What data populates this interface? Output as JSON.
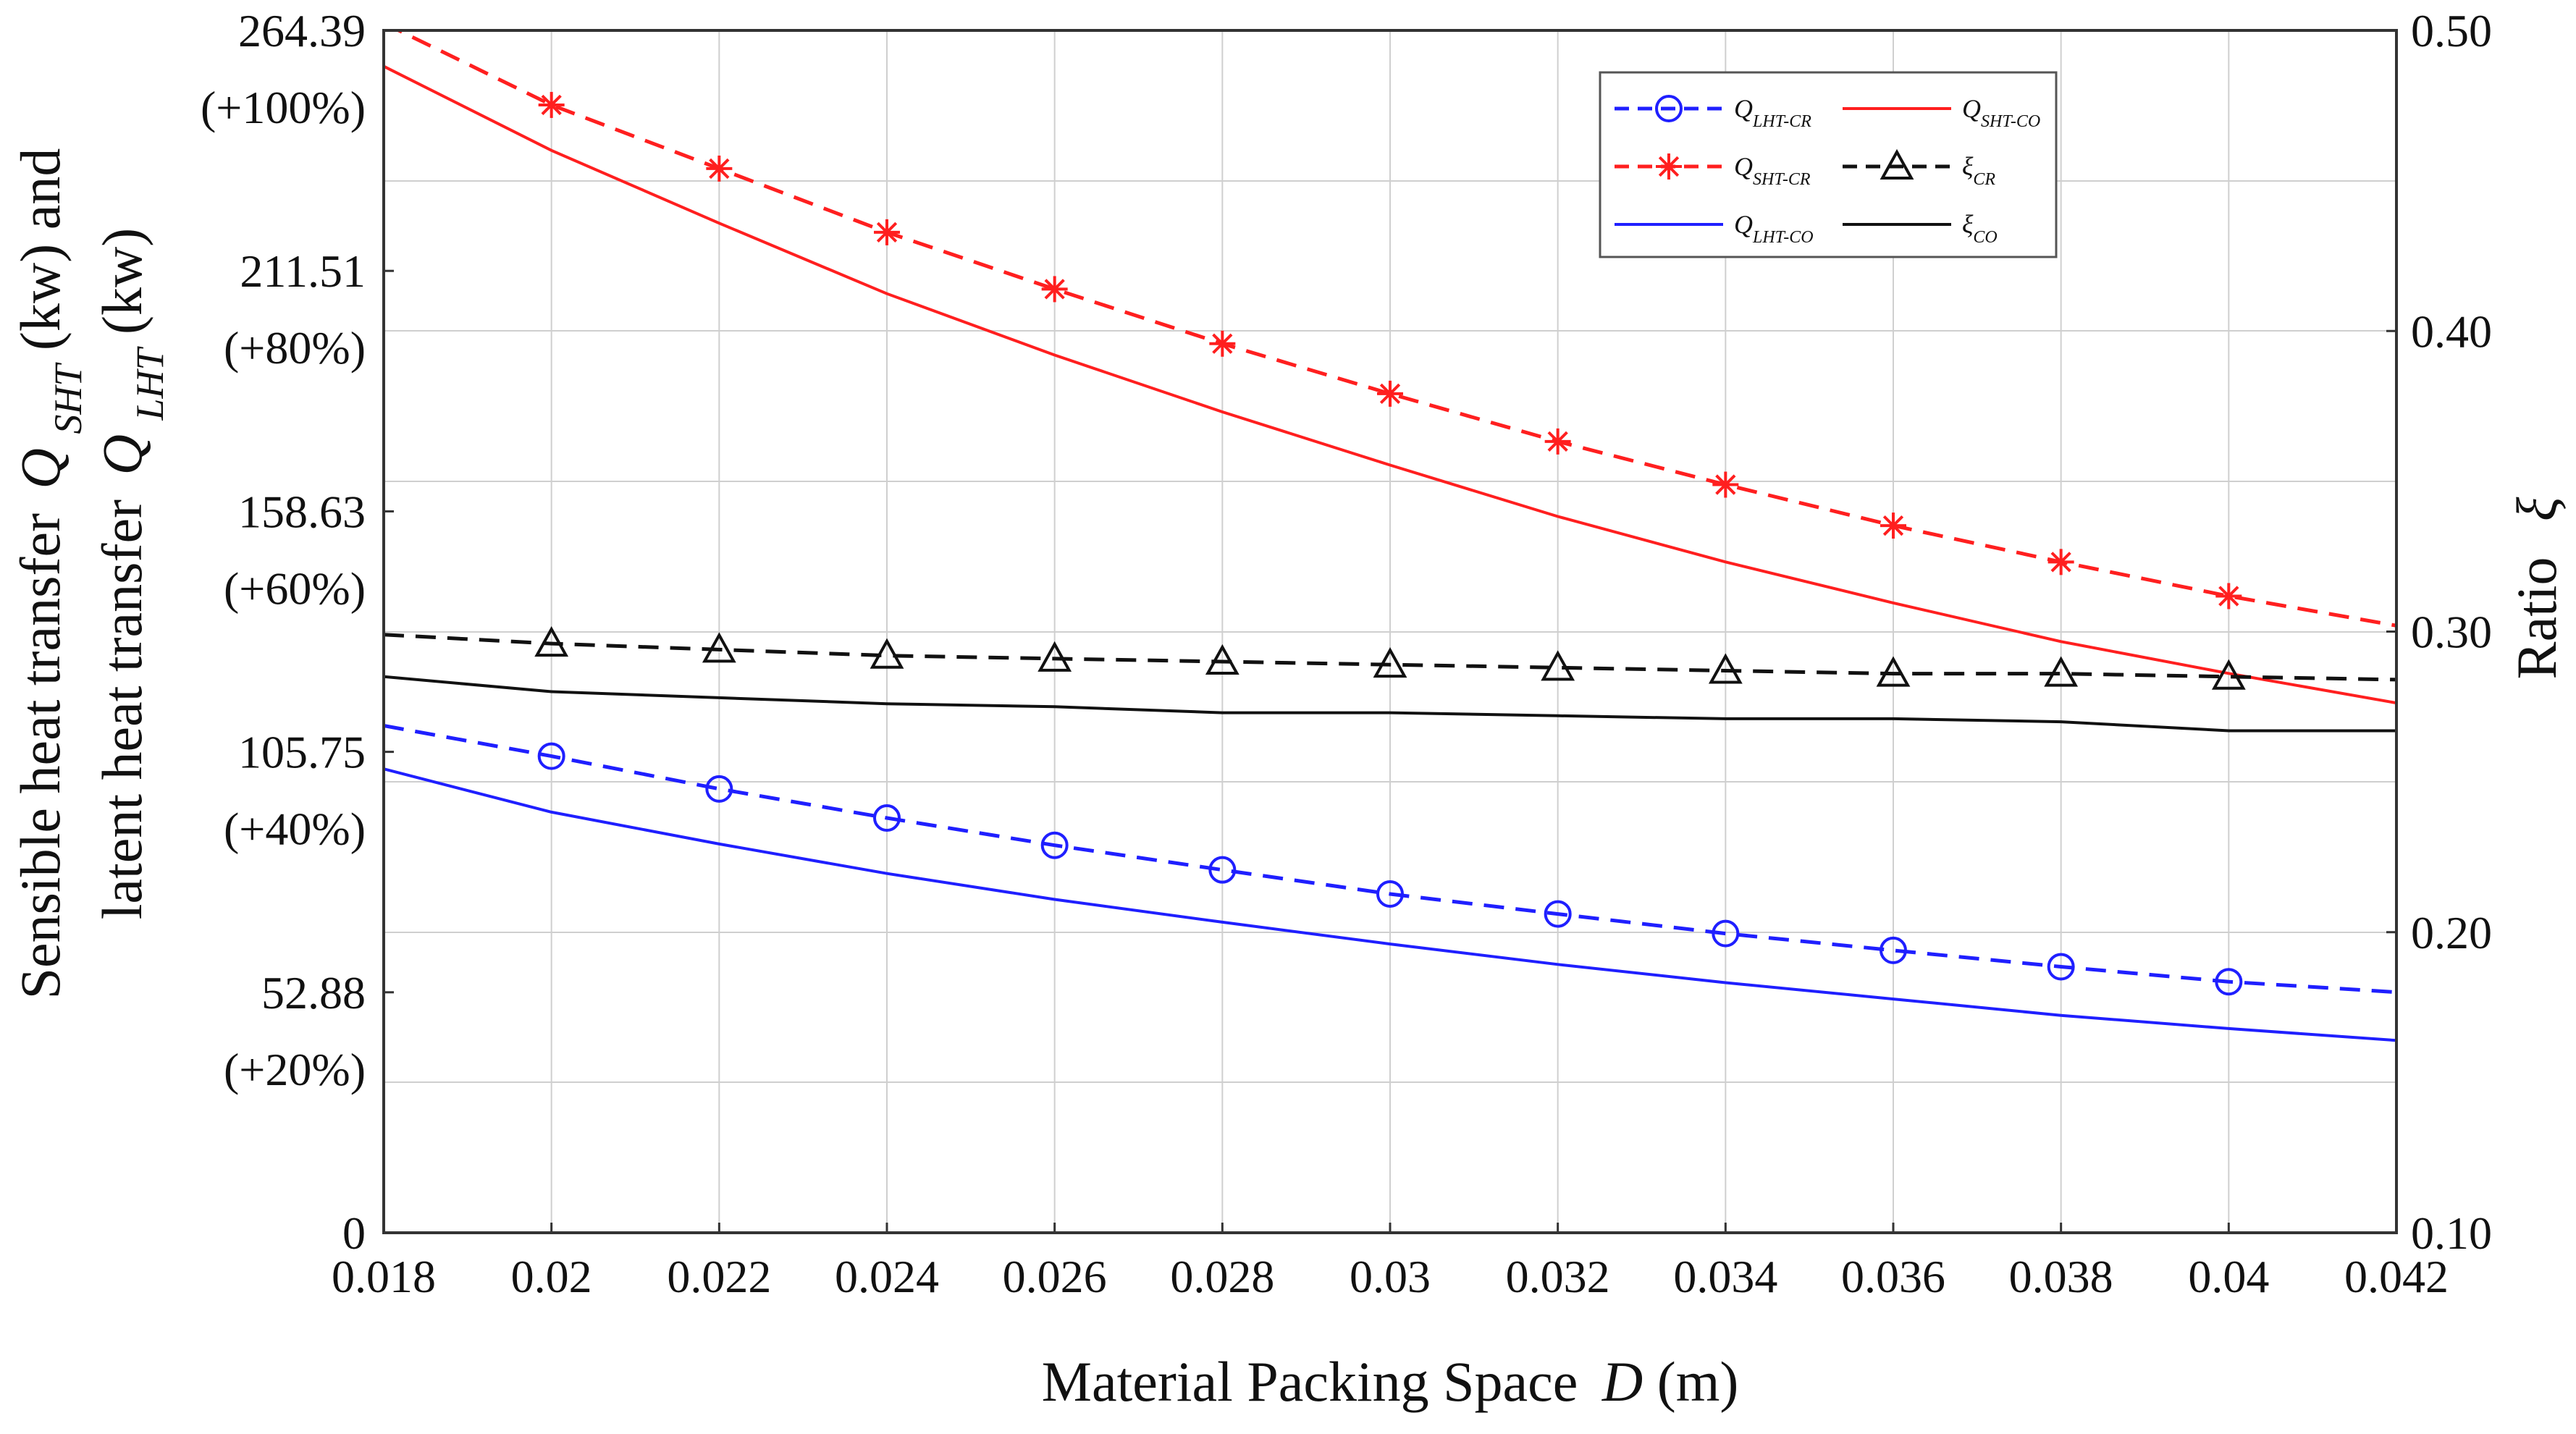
{
  "chart_data": {
    "type": "line",
    "x": [
      0.018,
      0.02,
      0.022,
      0.024,
      0.026,
      0.028,
      0.03,
      0.032,
      0.034,
      0.036,
      0.038,
      0.04,
      0.042
    ],
    "x_tick_labels": [
      "0.018",
      "0.02",
      "0.022",
      "0.024",
      "0.026",
      "0.028",
      "0.03",
      "0.032",
      "0.034",
      "0.036",
      "0.038",
      "0.04",
      "0.042"
    ],
    "xlim": [
      0.018,
      0.042
    ],
    "xlabel": "Material Packing Space",
    "xlabel_symbol": "D",
    "xlabel_unit": "(m)",
    "ylabel_left_line1_prefix": "Sensible heat transfer ",
    "ylabel_left_line1_symbol": "Q",
    "ylabel_left_line1_sub": "SHT",
    "ylabel_left_line1_suffix": "(kw) and",
    "ylabel_left_line2_prefix": "latent heat transfer ",
    "ylabel_left_line2_symbol": "Q",
    "ylabel_left_line2_sub": "LHT",
    "ylabel_left_line2_suffix": "(kw)",
    "ylabel_right": "Ratio",
    "ylabel_right_symbol": "ξ",
    "ylim_left": [
      0,
      264.39
    ],
    "ylim_right": [
      0.1,
      0.5
    ],
    "left_ticks": [
      {
        "value": 264.39,
        "label": "264.39",
        "pct": "(+100%)"
      },
      {
        "value": 211.51,
        "label": "211.51",
        "pct": "(+80%)"
      },
      {
        "value": 158.63,
        "label": "158.63",
        "pct": "(+60%)"
      },
      {
        "value": 105.75,
        "label": "105.75",
        "pct": "(+40%)"
      },
      {
        "value": 52.88,
        "label": "52.88",
        "pct": "(+20%)"
      },
      {
        "value": 0,
        "label": "0",
        "pct": ""
      }
    ],
    "right_ticks": [
      {
        "value": 0.5,
        "label": "0.50"
      },
      {
        "value": 0.4,
        "label": "0.40"
      },
      {
        "value": 0.3,
        "label": "0.30"
      },
      {
        "value": 0.2,
        "label": "0.20"
      },
      {
        "value": 0.1,
        "label": "0.10"
      }
    ],
    "grid": true,
    "legend_position": "top-right",
    "series": [
      {
        "id": "q-lht-cr",
        "name": "Q",
        "sub": "LHT-CR",
        "axis": "left",
        "color": "#1f1fff",
        "dash": true,
        "marker": "circle",
        "values": [
          111.5,
          104.8,
          97.6,
          91.2,
          85.2,
          79.8,
          74.5,
          70.1,
          65.8,
          62.1,
          58.5,
          55.2,
          52.9
        ]
      },
      {
        "id": "q-sht-cr",
        "name": "Q",
        "sub": "SHT-CR",
        "axis": "left",
        "color": "#ff1f1f",
        "dash": true,
        "marker": "star",
        "values": [
          266,
          248,
          234,
          220,
          207.5,
          195.5,
          184.5,
          174,
          164.5,
          155.5,
          147.5,
          140,
          133.5
        ]
      },
      {
        "id": "q-lht-co",
        "name": "Q",
        "sub": "LHT-CO",
        "axis": "left",
        "color": "#1f1fff",
        "dash": false,
        "marker": "none",
        "values": [
          102,
          92.5,
          85.5,
          79,
          73.3,
          68.3,
          63.5,
          59,
          55,
          51.4,
          47.8,
          44.9,
          42.3
        ]
      },
      {
        "id": "q-sht-co",
        "name": "Q",
        "sub": "SHT-CO",
        "axis": "left",
        "color": "#ff1f1f",
        "dash": false,
        "marker": "none",
        "values": [
          256.5,
          238,
          222,
          206.5,
          193,
          180.5,
          168.8,
          157.5,
          147.5,
          138.5,
          130,
          123,
          116.5
        ]
      },
      {
        "id": "xi-cr",
        "name": "ξ",
        "sub": "CR",
        "axis": "right",
        "color": "#111111",
        "dash": true,
        "marker": "triangle",
        "values": [
          0.299,
          0.296,
          0.294,
          0.292,
          0.291,
          0.29,
          0.289,
          0.288,
          0.287,
          0.286,
          0.286,
          0.285,
          0.284
        ]
      },
      {
        "id": "xi-co",
        "name": "ξ",
        "sub": "CO",
        "axis": "right",
        "color": "#111111",
        "dash": false,
        "marker": "none",
        "values": [
          0.285,
          0.28,
          0.278,
          0.276,
          0.275,
          0.273,
          0.273,
          0.272,
          0.271,
          0.271,
          0.27,
          0.267,
          0.267
        ]
      }
    ],
    "legend": [
      {
        "series": "q-lht-cr",
        "label": "Q",
        "sub": "LHT-CR"
      },
      {
        "series": "q-sht-co",
        "label": "Q",
        "sub": "SHT-CO"
      },
      {
        "series": "q-sht-cr",
        "label": "Q",
        "sub": "SHT-CR"
      },
      {
        "series": "xi-cr",
        "label": "ξ",
        "sub": "CR"
      },
      {
        "series": "q-lht-co",
        "label": "Q",
        "sub": "LHT-CO"
      },
      {
        "series": "xi-co",
        "label": "ξ",
        "sub": "CO"
      }
    ]
  }
}
